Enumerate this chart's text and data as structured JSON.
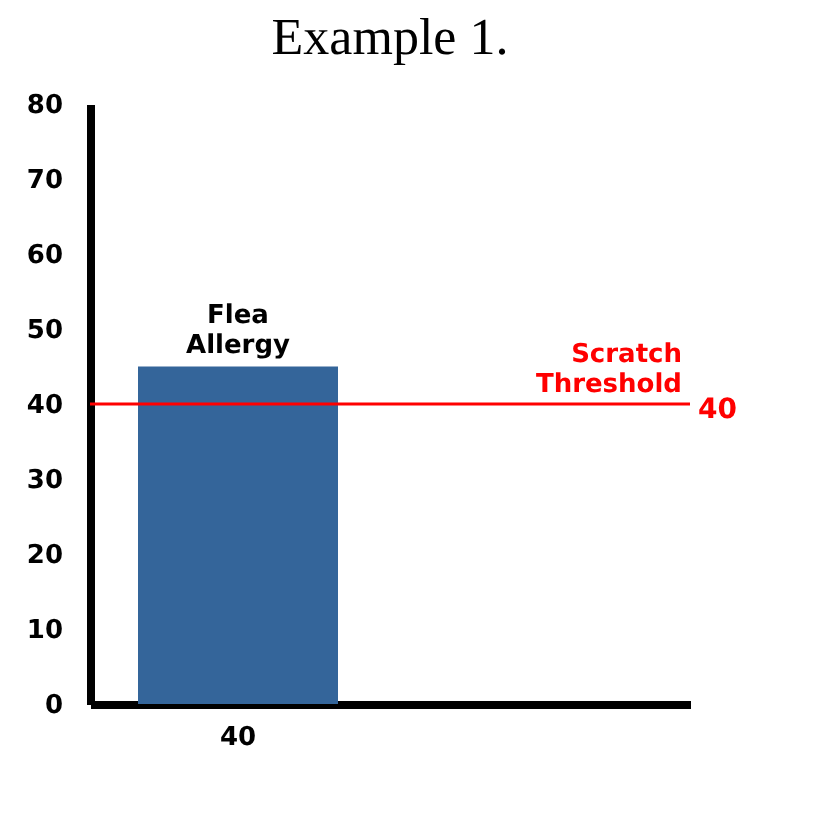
{
  "chart_data": {
    "type": "bar",
    "title": "Example 1.",
    "categories": [
      "40"
    ],
    "values": [
      45
    ],
    "color": "#34659a",
    "ylim": [
      0,
      80
    ],
    "yticks": [
      0,
      10,
      20,
      30,
      40,
      50,
      60,
      70,
      80
    ],
    "ref_lines": [
      {
        "axis": "y",
        "value": 40,
        "label": "Scratch Threshold",
        "color": "#ff0000"
      }
    ],
    "annotations": [
      {
        "text": "Flea Allergy",
        "x": "40",
        "y": 45
      },
      "40"
    ]
  }
}
